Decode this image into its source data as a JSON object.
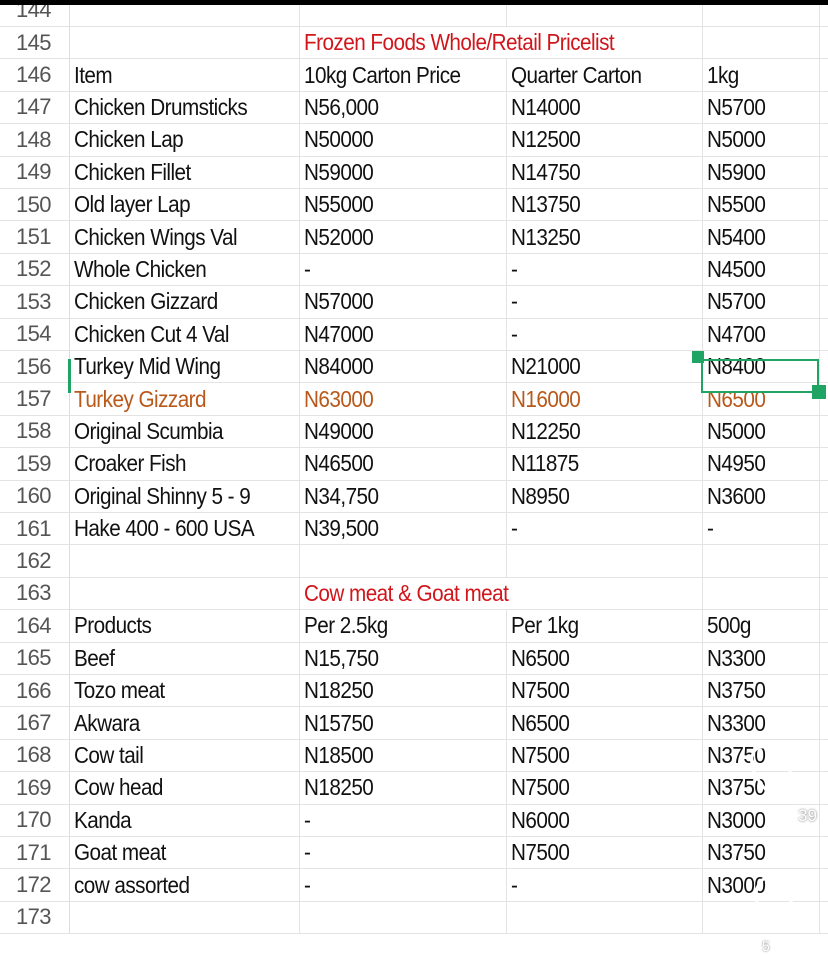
{
  "sheet": {
    "partial_rows": [
      "144",
      "173"
    ],
    "section1_title": "Frozen Foods Whole/Retail Pricelist",
    "section1_title_row": "145",
    "section1_header": {
      "row": "146",
      "cells": [
        "Item",
        "10kg Carton Price",
        "Quarter Carton",
        "1kg"
      ]
    },
    "section1_rows": [
      {
        "row": "147",
        "cells": [
          "Chicken Drumsticks",
          "N56,000",
          "N14000",
          "N5700"
        ]
      },
      {
        "row": "148",
        "cells": [
          "Chicken Lap",
          "N50000",
          "N12500",
          "N5000"
        ]
      },
      {
        "row": "149",
        "cells": [
          "Chicken Fillet",
          "N59000",
          "N14750",
          "N5900"
        ]
      },
      {
        "row": "150",
        "cells": [
          "Old layer Lap",
          "N55000",
          "N13750",
          "N5500"
        ]
      },
      {
        "row": "151",
        "cells": [
          "Chicken Wings Val",
          "N52000",
          "N13250",
          "N5400"
        ]
      },
      {
        "row": "152",
        "cells": [
          "Whole Chicken",
          "-",
          "-",
          "N4500"
        ]
      },
      {
        "row": "153",
        "cells": [
          "Chicken Gizzard",
          "N57000",
          "-",
          "N5700"
        ]
      },
      {
        "row": "154",
        "cells": [
          "Chicken Cut 4 Val",
          "N47000",
          "-",
          "N4700"
        ]
      },
      {
        "row": "156",
        "cells": [
          "Turkey Mid Wing",
          "N84000",
          "N21000",
          "N8400"
        ],
        "selected_cell": 3
      },
      {
        "row": "157",
        "cells": [
          "Turkey Gizzard",
          "N63000",
          "N16000",
          "N6500"
        ],
        "highlight": "orange"
      },
      {
        "row": "158",
        "cells": [
          "Original Scumbia",
          "N49000",
          "N12250",
          "N5000"
        ]
      },
      {
        "row": "159",
        "cells": [
          "Croaker Fish",
          "N46500",
          "N11875",
          "N4950"
        ]
      },
      {
        "row": "160",
        "cells": [
          "Original Shinny 5 - 9",
          "N34,750",
          "N8950",
          "N3600"
        ]
      },
      {
        "row": "161",
        "cells": [
          "Hake 400 - 600 USA",
          "N39,500",
          "-",
          "-"
        ]
      }
    ],
    "blank_row": "162",
    "section2_title": "Cow meat & Goat meat",
    "section2_title_row": "163",
    "section2_header": {
      "row": "164",
      "cells": [
        "Products",
        "Per 2.5kg",
        "Per 1kg",
        "500g"
      ]
    },
    "section2_rows": [
      {
        "row": "165",
        "cells": [
          "Beef",
          "N15,750",
          "N6500",
          "N3300"
        ]
      },
      {
        "row": "166",
        "cells": [
          "Tozo meat",
          "N18250",
          "N7500",
          "N3750"
        ]
      },
      {
        "row": "167",
        "cells": [
          "Akwara",
          "N15750",
          "N6500",
          "N3300"
        ]
      },
      {
        "row": "168",
        "cells": [
          "Cow tail",
          "N18500",
          "N7500",
          "N3750"
        ]
      },
      {
        "row": "169",
        "cells": [
          "Cow head",
          "N18250",
          "N7500",
          "N3750"
        ]
      },
      {
        "row": "170",
        "cells": [
          "Kanda",
          "-",
          "N6000",
          "N3000"
        ]
      },
      {
        "row": "171",
        "cells": [
          "Goat meat",
          "-",
          "N7500",
          "N3750"
        ]
      },
      {
        "row": "172",
        "cells": [
          "cow assorted",
          "-",
          "-",
          "N3000"
        ]
      }
    ]
  },
  "colors": {
    "title": "#d0161b",
    "highlight_orange": "#b8581a",
    "selection": "#1fa463"
  },
  "overlay": {
    "like_icon": "heart-icon",
    "like_count": "39",
    "comment_icon": "comment-icon",
    "comment_count": "5"
  }
}
